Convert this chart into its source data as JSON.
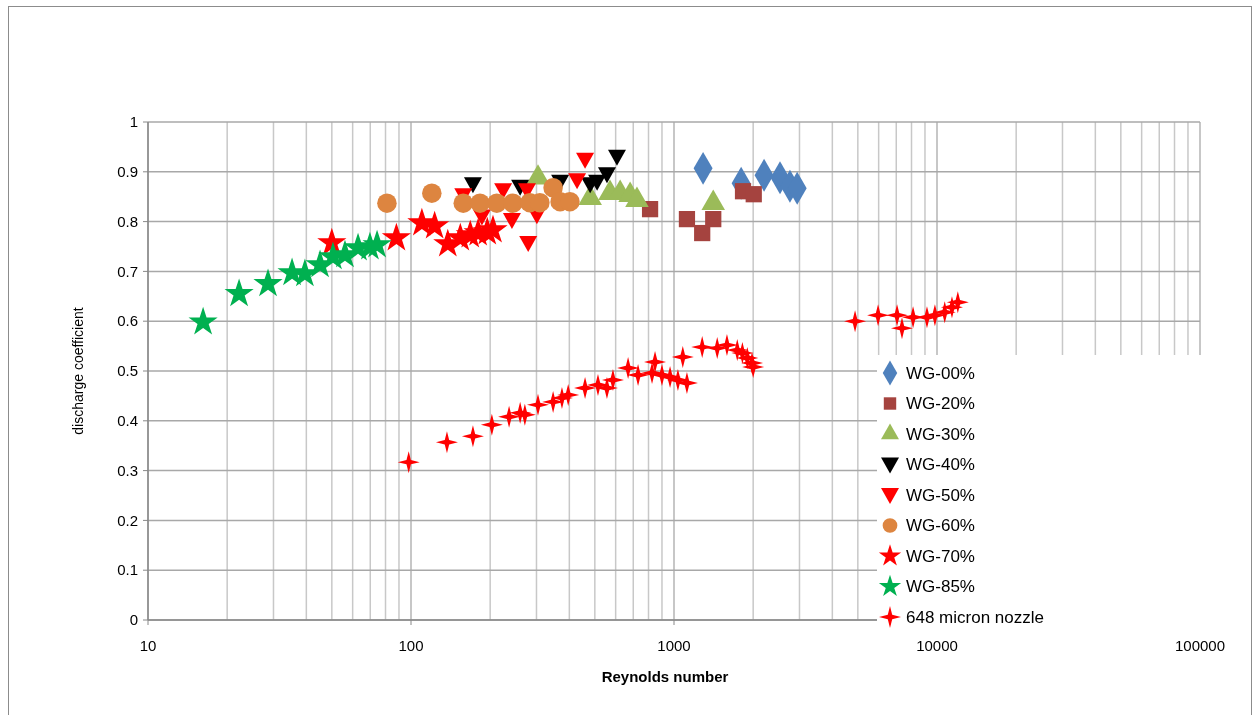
{
  "chart_data": {
    "type": "scatter",
    "xlabel": "Reynolds number",
    "ylabel": "discharge coefficient",
    "log": "x",
    "grid": true,
    "legend": "bottom right",
    "xlim": [
      10,
      100000
    ],
    "xticks": [
      10,
      100,
      1000,
      10000,
      100000
    ],
    "ylim": [
      0,
      1
    ],
    "yticks": [
      0,
      0.1,
      0.2,
      0.3,
      0.4,
      0.5,
      0.6,
      0.7,
      0.8,
      0.9,
      1
    ],
    "series": [
      {
        "name": "WG-00%",
        "color": "#4f81bd",
        "marker": "diamond",
        "x": [
          1290,
          1800,
          2200,
          2530,
          2760,
          2940
        ],
        "values": [
          0.907,
          0.877,
          0.893,
          0.888,
          0.871,
          0.867
        ]
      },
      {
        "name": "WG-20%",
        "color": "#a5433f",
        "marker": "square",
        "x": [
          811,
          1120,
          1280,
          1410,
          1830,
          2010
        ],
        "values": [
          0.825,
          0.805,
          0.777,
          0.805,
          0.861,
          0.855
        ]
      },
      {
        "name": "WG-30%",
        "color": "#9bbb59",
        "marker": "triangle",
        "x": [
          304,
          480,
          571,
          624,
          681,
          723,
          1410
        ],
        "values": [
          0.888,
          0.847,
          0.857,
          0.857,
          0.853,
          0.843,
          0.837
        ]
      },
      {
        "name": "WG-40%",
        "color": "#000000",
        "marker": "triangle-down",
        "x": [
          172,
          260,
          369,
          480,
          510,
          556,
          607
        ],
        "values": [
          0.875,
          0.87,
          0.88,
          0.875,
          0.88,
          0.895,
          0.93
        ]
      },
      {
        "name": "WG-50%",
        "color": "#ff0000",
        "marker": "triangle-down",
        "x": [
          158,
          186,
          224,
          242,
          279,
          276,
          301,
          428,
          459
        ],
        "values": [
          0.853,
          0.81,
          0.863,
          0.803,
          0.757,
          0.863,
          0.813,
          0.883,
          0.924
        ]
      },
      {
        "name": "WG-60%",
        "color": "#dd8540",
        "marker": "circle",
        "x": [
          81,
          120,
          158,
          183,
          212,
          244,
          283,
          309,
          347,
          369,
          402
        ],
        "values": [
          0.837,
          0.857,
          0.837,
          0.837,
          0.837,
          0.837,
          0.838,
          0.838,
          0.868,
          0.84,
          0.84
        ]
      },
      {
        "name": "WG-70%",
        "color": "#ff0000",
        "marker": "star",
        "x": [
          50,
          88,
          110,
          123,
          138,
          154,
          168,
          180,
          195,
          205
        ],
        "values": [
          0.757,
          0.767,
          0.797,
          0.791,
          0.755,
          0.767,
          0.773,
          0.777,
          0.779,
          0.783
        ]
      },
      {
        "name": "WG-85%",
        "color": "#00b050",
        "marker": "star",
        "x": [
          16.2,
          22.2,
          28.6,
          35.3,
          39.5,
          45.1,
          50.5,
          56.1,
          62.9,
          69.8,
          74.3
        ],
        "values": [
          0.598,
          0.655,
          0.675,
          0.697,
          0.695,
          0.713,
          0.729,
          0.733,
          0.747,
          0.749,
          0.753
        ]
      },
      {
        "name": "648 micron nozzle",
        "color": "#ff0000",
        "marker": "cross",
        "x": [
          98,
          137,
          172,
          203,
          236,
          260,
          271,
          304,
          347,
          375,
          396,
          459,
          514,
          556,
          586,
          669,
          730,
          825,
          847,
          900,
          966,
          1035,
          1120,
          1080,
          1280,
          1460,
          1590,
          1740,
          1820,
          1900,
          1980,
          2000,
          4880,
          5970,
          7050,
          7360,
          8110,
          9160,
          9820,
          10700,
          11400,
          12000
        ],
        "values": [
          0.317,
          0.357,
          0.369,
          0.392,
          0.408,
          0.416,
          0.412,
          0.432,
          0.438,
          0.446,
          0.452,
          0.466,
          0.472,
          0.466,
          0.482,
          0.506,
          0.492,
          0.496,
          0.518,
          0.492,
          0.488,
          0.482,
          0.476,
          0.528,
          0.548,
          0.546,
          0.552,
          0.542,
          0.536,
          0.526,
          0.516,
          0.508,
          0.6,
          0.612,
          0.612,
          0.586,
          0.608,
          0.608,
          0.612,
          0.618,
          0.628,
          0.638
        ]
      }
    ]
  }
}
